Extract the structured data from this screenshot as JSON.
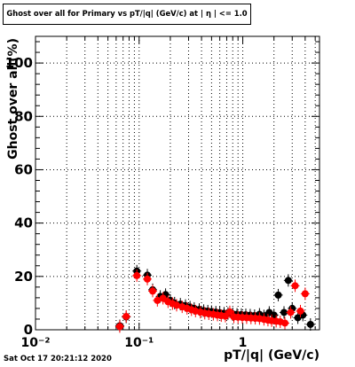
{
  "title": "Ghost over all for Primary vs pT/|q| (GeV/c) at |  η | <= 1.0",
  "timestamp": "Sat Oct 17 20:21:12 2020",
  "chart_data": {
    "type": "scatter",
    "title": "Ghost over all for Primary vs pT/|q| (GeV/c) at |  η | <= 1.0",
    "xlabel": "pT/|q| (GeV/c)",
    "ylabel": "Ghost over all(%)",
    "xscale": "log",
    "xlim": [
      0.01,
      5.5
    ],
    "ylim": [
      0,
      110
    ],
    "grid": true,
    "x_tick_labels": [
      "10⁻²",
      "10⁻¹",
      "1"
    ],
    "y_tick_labels": [
      "0",
      "20",
      "40",
      "60",
      "80",
      "100"
    ],
    "series": [
      {
        "color": "#000000",
        "points": [
          [
            0.065,
            1.5
          ],
          [
            0.075,
            4.8
          ],
          [
            0.095,
            22
          ],
          [
            0.12,
            20.5
          ],
          [
            0.135,
            15
          ],
          [
            0.16,
            12.5
          ],
          [
            0.18,
            13.2
          ],
          [
            0.2,
            11
          ],
          [
            0.22,
            10
          ],
          [
            0.25,
            9.6
          ],
          [
            0.28,
            9.1
          ],
          [
            0.31,
            8.5
          ],
          [
            0.34,
            8
          ],
          [
            0.38,
            7.6
          ],
          [
            0.42,
            7.2
          ],
          [
            0.46,
            7
          ],
          [
            0.5,
            6.8
          ],
          [
            0.55,
            6.6
          ],
          [
            0.6,
            6.4
          ],
          [
            0.66,
            6.2
          ],
          [
            0.72,
            6.1
          ],
          [
            0.8,
            6
          ],
          [
            0.88,
            5.8
          ],
          [
            0.97,
            5.7
          ],
          [
            1.07,
            5.6
          ],
          [
            1.18,
            5.5
          ],
          [
            1.3,
            5.3
          ],
          [
            1.45,
            5.8
          ],
          [
            1.6,
            5.2
          ],
          [
            1.8,
            6.5
          ],
          [
            2.0,
            5.5
          ],
          [
            2.2,
            13
          ],
          [
            2.5,
            6.5
          ],
          [
            2.75,
            18.5
          ],
          [
            3.0,
            8
          ],
          [
            3.4,
            4.5
          ],
          [
            3.8,
            5.5
          ],
          [
            4.5,
            2
          ]
        ]
      },
      {
        "color": "#ff0000",
        "points": [
          [
            0.065,
            1.2
          ],
          [
            0.075,
            5
          ],
          [
            0.095,
            20.3
          ],
          [
            0.12,
            19
          ],
          [
            0.135,
            14.5
          ],
          [
            0.15,
            11
          ],
          [
            0.17,
            11.8
          ],
          [
            0.19,
            10.5
          ],
          [
            0.21,
            9.8
          ],
          [
            0.23,
            9.2
          ],
          [
            0.26,
            8.6
          ],
          [
            0.29,
            8
          ],
          [
            0.32,
            7.5
          ],
          [
            0.35,
            7
          ],
          [
            0.39,
            6.6
          ],
          [
            0.43,
            6.2
          ],
          [
            0.47,
            6
          ],
          [
            0.52,
            5.8
          ],
          [
            0.57,
            5.5
          ],
          [
            0.62,
            5.3
          ],
          [
            0.68,
            5.1
          ],
          [
            0.75,
            6.7
          ],
          [
            0.82,
            4.8
          ],
          [
            0.9,
            4.7
          ],
          [
            0.99,
            4.6
          ],
          [
            1.09,
            4.5
          ],
          [
            1.2,
            4.4
          ],
          [
            1.32,
            4.3
          ],
          [
            1.45,
            4.2
          ],
          [
            1.6,
            3.9
          ],
          [
            1.75,
            3.6
          ],
          [
            1.9,
            3.4
          ],
          [
            2.1,
            3.2
          ],
          [
            2.3,
            3
          ],
          [
            2.55,
            2.5
          ],
          [
            2.9,
            6.5
          ],
          [
            3.2,
            16.5
          ],
          [
            3.6,
            7
          ],
          [
            4.0,
            13.5
          ]
        ]
      }
    ]
  }
}
